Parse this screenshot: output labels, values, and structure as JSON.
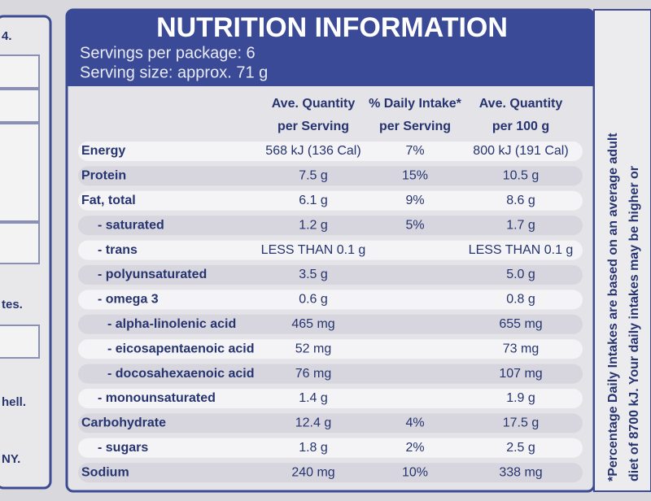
{
  "header": {
    "title": "NUTRITION INFORMATION",
    "servings": "Servings per package: 6",
    "serving_size": "Serving size: approx. 71 g"
  },
  "table": {
    "columns": [
      "Ave. Quantity per Serving",
      "% Daily Intake* per Serving",
      "Ave. Quantity per 100 g"
    ],
    "rows": [
      [
        "Energy",
        "568 kJ (136 Cal)",
        "7%",
        "800 kJ (191 Cal)"
      ],
      [
        "Protein",
        "7.5 g",
        "15%",
        "10.5 g"
      ],
      [
        "Fat, total",
        "6.1 g",
        "9%",
        "8.6 g"
      ],
      [
        "- saturated",
        "1.2 g",
        "5%",
        "1.7 g"
      ],
      [
        "- trans",
        "LESS THAN 0.1 g",
        null,
        "LESS THAN 0.1 g"
      ],
      [
        "- polyunsaturated",
        "3.5 g",
        null,
        "5.0 g"
      ],
      [
        "- omega 3",
        "0.6 g",
        null,
        "0.8 g"
      ],
      [
        "- alpha-linolenic acid",
        "465 mg",
        null,
        "655 mg"
      ],
      [
        "- eicosapentaenoic acid",
        "52 mg",
        null,
        "73 mg"
      ],
      [
        "- docosahexaenoic acid",
        "76 mg",
        null,
        "107 mg"
      ],
      [
        "- monounsaturated",
        "1.4 g",
        null,
        "1.9 g"
      ],
      [
        "Carbohydrate",
        "12.4 g",
        "4%",
        "17.5 g"
      ],
      [
        "- sugars",
        "1.8 g",
        "2%",
        "2.5 g"
      ],
      [
        "Sodium",
        "240 mg",
        "10%",
        "338 mg"
      ]
    ]
  },
  "footnote": [
    "*Percentage Daily Intakes are based on an average adult",
    "diet of 8700 kJ. Your daily intakes may be higher or"
  ],
  "side_fragments": [
    "4.",
    "tes.",
    "hell.",
    "NY."
  ]
}
